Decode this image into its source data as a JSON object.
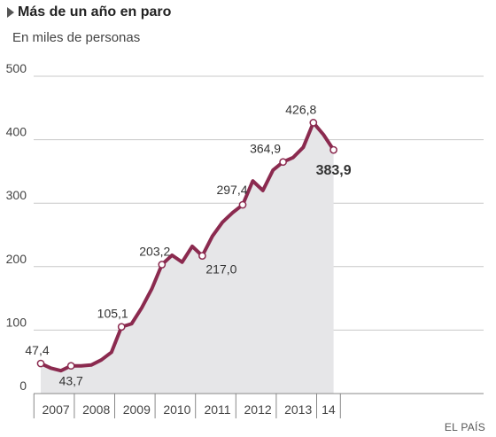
{
  "header": {
    "title": "Más de un año en paro",
    "subtitle": "En miles de personas",
    "icon": "triangle-bullet-icon"
  },
  "source": "EL PAÍS",
  "colors": {
    "line": "#8b2a4f",
    "area": "#e6e6e8",
    "grid": "#c8c8c8"
  },
  "chart_data": {
    "type": "area",
    "title": "Más de un año en paro",
    "subtitle": "En miles de personas",
    "ylim": [
      0,
      500
    ],
    "yticks": [
      0,
      100,
      200,
      300,
      400,
      500
    ],
    "grid": true,
    "x_labels": [
      "2007",
      "2008",
      "2009",
      "2010",
      "2011",
      "2012",
      "2013",
      "14"
    ],
    "x_label_periods": [
      4,
      4,
      4,
      4,
      4,
      4,
      4,
      2
    ],
    "period": "quarterly",
    "series": [
      {
        "values": [
          47.4,
          40,
          36,
          43.7,
          43.7,
          45,
          53,
          65,
          105.1,
          110,
          135,
          165,
          203.2,
          218,
          207,
          232,
          217.0,
          248,
          270,
          285,
          297.4,
          335,
          320,
          352,
          364.9,
          372,
          388,
          426.8,
          408,
          383.9
        ]
      }
    ],
    "annotations": [
      {
        "index": 0,
        "text": "47,4"
      },
      {
        "index": 3,
        "text": "43,7"
      },
      {
        "index": 8,
        "text": "105,1"
      },
      {
        "index": 12,
        "text": "203,2"
      },
      {
        "index": 16,
        "text": "217,0"
      },
      {
        "index": 20,
        "text": "297,4"
      },
      {
        "index": 24,
        "text": "364,9"
      },
      {
        "index": 27,
        "text": "426,8"
      },
      {
        "index": 29,
        "text": "383,9"
      }
    ]
  }
}
